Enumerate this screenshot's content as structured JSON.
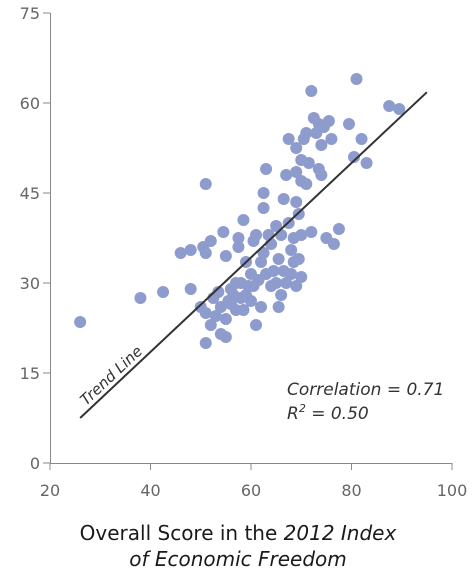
{
  "chart_data": {
    "type": "scatter",
    "xlim": [
      20,
      100
    ],
    "ylim": [
      0,
      75
    ],
    "x_ticks": [
      20,
      40,
      60,
      80,
      100
    ],
    "y_ticks": [
      0,
      15,
      30,
      45,
      60,
      75
    ],
    "xlabel": {
      "part1": "Overall Score in the ",
      "part2": "2012 Index",
      "part3": "of Economic Freedom"
    },
    "ylabel": "",
    "grid": false,
    "point_color": "#8e9ccd",
    "trend_line": {
      "label": "Trend Line",
      "x": [
        26,
        95
      ],
      "y": [
        7.5,
        61.8
      ],
      "color": "#333333"
    },
    "annotations": {
      "correlation": "Correlation = 0.71",
      "r2_prefix": "R",
      "r2_sup": "2",
      "r2_suffix": " = 0.50"
    },
    "points": [
      {
        "x": 26.0,
        "y": 23.5
      },
      {
        "x": 38.0,
        "y": 27.5
      },
      {
        "x": 42.5,
        "y": 28.5
      },
      {
        "x": 46.0,
        "y": 35.0
      },
      {
        "x": 48.0,
        "y": 35.5
      },
      {
        "x": 48.0,
        "y": 29.0
      },
      {
        "x": 50.0,
        "y": 26.0
      },
      {
        "x": 50.5,
        "y": 36.0
      },
      {
        "x": 51.0,
        "y": 46.5
      },
      {
        "x": 51.0,
        "y": 35.0
      },
      {
        "x": 51.0,
        "y": 25.0
      },
      {
        "x": 51.0,
        "y": 20.0
      },
      {
        "x": 52.0,
        "y": 23.0
      },
      {
        "x": 52.0,
        "y": 37.0
      },
      {
        "x": 52.5,
        "y": 27.5
      },
      {
        "x": 53.0,
        "y": 24.5
      },
      {
        "x": 53.5,
        "y": 28.5
      },
      {
        "x": 54.0,
        "y": 21.5
      },
      {
        "x": 54.0,
        "y": 26.0
      },
      {
        "x": 54.5,
        "y": 38.5
      },
      {
        "x": 55.0,
        "y": 34.5
      },
      {
        "x": 55.0,
        "y": 24.0
      },
      {
        "x": 55.0,
        "y": 21.0
      },
      {
        "x": 55.5,
        "y": 27.0
      },
      {
        "x": 56.0,
        "y": 29.0
      },
      {
        "x": 56.0,
        "y": 26.5
      },
      {
        "x": 56.5,
        "y": 28.0
      },
      {
        "x": 57.0,
        "y": 25.5
      },
      {
        "x": 57.0,
        "y": 30.0
      },
      {
        "x": 57.5,
        "y": 37.5
      },
      {
        "x": 57.5,
        "y": 36.0
      },
      {
        "x": 58.0,
        "y": 27.5
      },
      {
        "x": 58.0,
        "y": 30.0
      },
      {
        "x": 58.5,
        "y": 25.5
      },
      {
        "x": 58.5,
        "y": 40.5
      },
      {
        "x": 59.0,
        "y": 33.5
      },
      {
        "x": 59.0,
        "y": 28.0
      },
      {
        "x": 59.5,
        "y": 29.5
      },
      {
        "x": 60.0,
        "y": 31.5
      },
      {
        "x": 60.0,
        "y": 27.0
      },
      {
        "x": 60.5,
        "y": 37.0
      },
      {
        "x": 60.5,
        "y": 29.5
      },
      {
        "x": 61.0,
        "y": 38.0
      },
      {
        "x": 61.0,
        "y": 23.0
      },
      {
        "x": 61.5,
        "y": 30.5
      },
      {
        "x": 62.0,
        "y": 33.5
      },
      {
        "x": 62.0,
        "y": 26.0
      },
      {
        "x": 62.5,
        "y": 35.0
      },
      {
        "x": 62.5,
        "y": 45.0
      },
      {
        "x": 62.5,
        "y": 42.5
      },
      {
        "x": 63.0,
        "y": 49.0
      },
      {
        "x": 63.0,
        "y": 31.5
      },
      {
        "x": 63.5,
        "y": 38.0
      },
      {
        "x": 64.0,
        "y": 29.5
      },
      {
        "x": 64.0,
        "y": 36.5
      },
      {
        "x": 64.5,
        "y": 32.0
      },
      {
        "x": 65.0,
        "y": 39.5
      },
      {
        "x": 65.0,
        "y": 30.0
      },
      {
        "x": 65.5,
        "y": 34.0
      },
      {
        "x": 65.5,
        "y": 26.0
      },
      {
        "x": 66.0,
        "y": 38.0
      },
      {
        "x": 66.0,
        "y": 28.0
      },
      {
        "x": 66.5,
        "y": 44.0
      },
      {
        "x": 66.5,
        "y": 32.0
      },
      {
        "x": 67.0,
        "y": 48.0
      },
      {
        "x": 67.0,
        "y": 30.0
      },
      {
        "x": 67.5,
        "y": 54.0
      },
      {
        "x": 67.5,
        "y": 40.0
      },
      {
        "x": 68.0,
        "y": 35.5
      },
      {
        "x": 68.0,
        "y": 31.5
      },
      {
        "x": 68.5,
        "y": 37.5
      },
      {
        "x": 68.5,
        "y": 33.5
      },
      {
        "x": 69.0,
        "y": 52.5
      },
      {
        "x": 69.0,
        "y": 48.5
      },
      {
        "x": 69.0,
        "y": 43.5
      },
      {
        "x": 69.0,
        "y": 29.5
      },
      {
        "x": 69.5,
        "y": 41.5
      },
      {
        "x": 69.5,
        "y": 34.0
      },
      {
        "x": 70.0,
        "y": 50.5
      },
      {
        "x": 70.0,
        "y": 47.0
      },
      {
        "x": 70.0,
        "y": 38.0
      },
      {
        "x": 70.0,
        "y": 31.0
      },
      {
        "x": 70.5,
        "y": 54.0
      },
      {
        "x": 71.0,
        "y": 55.0
      },
      {
        "x": 71.0,
        "y": 46.5
      },
      {
        "x": 71.5,
        "y": 50.0
      },
      {
        "x": 72.0,
        "y": 62.0
      },
      {
        "x": 72.0,
        "y": 38.5
      },
      {
        "x": 72.5,
        "y": 57.5
      },
      {
        "x": 73.0,
        "y": 55.0
      },
      {
        "x": 73.5,
        "y": 56.5
      },
      {
        "x": 73.5,
        "y": 49.0
      },
      {
        "x": 74.0,
        "y": 53.0
      },
      {
        "x": 74.0,
        "y": 48.0
      },
      {
        "x": 74.5,
        "y": 56.0
      },
      {
        "x": 75.0,
        "y": 37.5
      },
      {
        "x": 75.5,
        "y": 57.0
      },
      {
        "x": 76.0,
        "y": 54.0
      },
      {
        "x": 76.5,
        "y": 36.5
      },
      {
        "x": 77.5,
        "y": 39.0
      },
      {
        "x": 79.5,
        "y": 56.5
      },
      {
        "x": 80.5,
        "y": 51.0
      },
      {
        "x": 81.0,
        "y": 64.0
      },
      {
        "x": 82.0,
        "y": 54.0
      },
      {
        "x": 83.0,
        "y": 50.0
      },
      {
        "x": 87.5,
        "y": 59.5
      },
      {
        "x": 89.5,
        "y": 59.0
      }
    ]
  }
}
